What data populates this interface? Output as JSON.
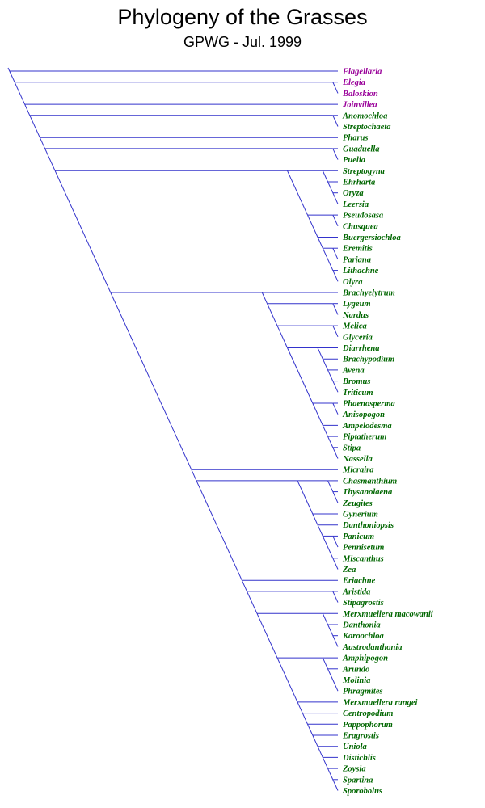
{
  "title": "Phylogeny of the Grasses",
  "subtitle": "GPWG - Jul. 1999",
  "colors": {
    "branch": "#3333cc",
    "outgroup_label": "#990099",
    "grass_label": "#006600"
  },
  "taxa": [
    {
      "name": "Flagellaria",
      "group": "outgroup"
    },
    {
      "name": "Elegia",
      "group": "outgroup"
    },
    {
      "name": "Baloskion",
      "group": "outgroup"
    },
    {
      "name": "Joinvillea",
      "group": "outgroup"
    },
    {
      "name": "Anomochloa",
      "group": "grass"
    },
    {
      "name": "Streptochaeta",
      "group": "grass"
    },
    {
      "name": "Pharus",
      "group": "grass"
    },
    {
      "name": "Guaduella",
      "group": "grass"
    },
    {
      "name": "Puelia",
      "group": "grass"
    },
    {
      "name": "Streptogyna",
      "group": "grass"
    },
    {
      "name": "Ehrharta",
      "group": "grass"
    },
    {
      "name": "Oryza",
      "group": "grass"
    },
    {
      "name": "Leersia",
      "group": "grass"
    },
    {
      "name": "Pseudosasa",
      "group": "grass"
    },
    {
      "name": "Chusquea",
      "group": "grass"
    },
    {
      "name": "Buergersiochloa",
      "group": "grass"
    },
    {
      "name": "Eremitis",
      "group": "grass"
    },
    {
      "name": "Pariana",
      "group": "grass"
    },
    {
      "name": "Lithachne",
      "group": "grass"
    },
    {
      "name": "Olyra",
      "group": "grass"
    },
    {
      "name": "Brachyelytrum",
      "group": "grass"
    },
    {
      "name": "Lygeum",
      "group": "grass"
    },
    {
      "name": "Nardus",
      "group": "grass"
    },
    {
      "name": "Melica",
      "group": "grass"
    },
    {
      "name": "Glyceria",
      "group": "grass"
    },
    {
      "name": "Diarrhena",
      "group": "grass"
    },
    {
      "name": "Brachypodium",
      "group": "grass"
    },
    {
      "name": "Avena",
      "group": "grass"
    },
    {
      "name": "Bromus",
      "group": "grass"
    },
    {
      "name": "Triticum",
      "group": "grass"
    },
    {
      "name": "Phaenosperma",
      "group": "grass"
    },
    {
      "name": "Anisopogon",
      "group": "grass"
    },
    {
      "name": "Ampelodesma",
      "group": "grass"
    },
    {
      "name": "Piptatherum",
      "group": "grass"
    },
    {
      "name": "Stipa",
      "group": "grass"
    },
    {
      "name": "Nassella",
      "group": "grass"
    },
    {
      "name": "Micraira",
      "group": "grass"
    },
    {
      "name": "Chasmanthium",
      "group": "grass"
    },
    {
      "name": "Thysanolaena",
      "group": "grass"
    },
    {
      "name": "Zeugites",
      "group": "grass"
    },
    {
      "name": "Gynerium",
      "group": "grass"
    },
    {
      "name": "Danthoniopsis",
      "group": "grass"
    },
    {
      "name": "Panicum",
      "group": "grass"
    },
    {
      "name": "Pennisetum",
      "group": "grass"
    },
    {
      "name": "Miscanthus",
      "group": "grass"
    },
    {
      "name": "Zea",
      "group": "grass"
    },
    {
      "name": "Eriachne",
      "group": "grass"
    },
    {
      "name": "Aristida",
      "group": "grass"
    },
    {
      "name": "Stipagrostis",
      "group": "grass"
    },
    {
      "name": "Merxmuellera macowanii",
      "group": "grass"
    },
    {
      "name": "Danthonia",
      "group": "grass"
    },
    {
      "name": "Karoochloa",
      "group": "grass"
    },
    {
      "name": "Austrodanthonia",
      "group": "grass"
    },
    {
      "name": "Amphipogon",
      "group": "grass"
    },
    {
      "name": "Arundo",
      "group": "grass"
    },
    {
      "name": "Molinia",
      "group": "grass"
    },
    {
      "name": "Phragmites",
      "group": "grass"
    },
    {
      "name": "Merxmuellera rangei",
      "group": "grass"
    },
    {
      "name": "Centropodium",
      "group": "grass"
    },
    {
      "name": "Pappophorum",
      "group": "grass"
    },
    {
      "name": "Eragrostis",
      "group": "grass"
    },
    {
      "name": "Uniola",
      "group": "grass"
    },
    {
      "name": "Distichlis",
      "group": "grass"
    },
    {
      "name": "Zoysia",
      "group": "grass"
    },
    {
      "name": "Spartina",
      "group": "grass"
    },
    {
      "name": "Sporobolus",
      "group": "grass"
    }
  ],
  "tree": "(Flagellaria,((Elegia,Baloskion),(Joinvillea,((Anomochloa,Streptochaeta),(Pharus,((Guaduella,Puelia),(((Streptogyna,(Ehrharta,(Oryza,Leersia))),((Pseudosasa,Chusquea),(Buergersiochloa,((Eremitis,Pariana),(Lithachne,Olyra))))),((Brachyelytrum,((Lygeum,Nardus),((Melica,Glyceria),((Diarrhena,(Brachypodium,(Avena,(Bromus,Triticum)))),((Phaenosperma,Anisopogon),(Ampelodesma,(Piptatherum,(Stipa,Nassella)))))))),(Micraira,(((Chasmanthium,(Thysanolaena,Zeugites)),(Gynerium,(Danthoniopsis,((Panicum,Pennisetum),(Miscanthus,Zea))))),(Eriachne,((Aristida,Stipagrostis),((Merxmuellera macowanii,(Danthonia,(Karoochloa,Austrodanthonia))),((Amphipogon,(Arundo,(Molinia,Phragmites))),(Merxmuellera rangei,(Centropodium,(Pappophorum,(Eragrostis,(Uniola,(Distichlis,(Zoysia,(Spartina,Sporobolus))))))))))))))))))))))"
}
